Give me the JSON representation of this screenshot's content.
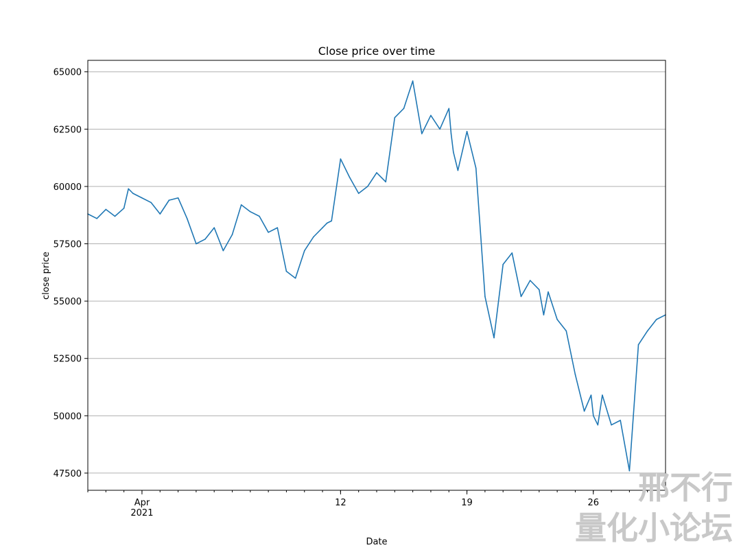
{
  "chart_data": {
    "type": "line",
    "title": "Close price over time",
    "xlabel": "Date",
    "ylabel": "close price",
    "x_range": [
      "2021-03-29",
      "2021-04-30"
    ],
    "ylim": [
      46750,
      65500
    ],
    "yticks": [
      47500,
      50000,
      52500,
      55000,
      57500,
      60000,
      62500,
      65000
    ],
    "xticks": [
      {
        "date": "2021-04-01",
        "label": "Apr",
        "sublabel": "2021"
      },
      {
        "date": "2021-04-12",
        "label": "12",
        "sublabel": ""
      },
      {
        "date": "2021-04-19",
        "label": "19",
        "sublabel": ""
      },
      {
        "date": "2021-04-26",
        "label": "26",
        "sublabel": ""
      }
    ],
    "grid": "y-major",
    "color": "#1f77b4",
    "series": [
      {
        "x": [
          "2021-03-29T00:00",
          "2021-03-29T12:00",
          "2021-03-30T00:00",
          "2021-03-30T12:00",
          "2021-03-31T00:00",
          "2021-03-31T06:00",
          "2021-03-31T12:00",
          "2021-04-01T00:00",
          "2021-04-01T12:00",
          "2021-04-02T00:00",
          "2021-04-02T12:00",
          "2021-04-03T00:00",
          "2021-04-03T12:00",
          "2021-04-04T00:00",
          "2021-04-04T12:00",
          "2021-04-05T00:00",
          "2021-04-05T12:00",
          "2021-04-06T00:00",
          "2021-04-06T12:00",
          "2021-04-07T00:00",
          "2021-04-07T12:00",
          "2021-04-08T00:00",
          "2021-04-08T12:00",
          "2021-04-09T00:00",
          "2021-04-09T12:00",
          "2021-04-10T00:00",
          "2021-04-10T12:00",
          "2021-04-11T00:00",
          "2021-04-11T06:00",
          "2021-04-11T12:00",
          "2021-04-12T00:00",
          "2021-04-12T12:00",
          "2021-04-13T00:00",
          "2021-04-13T12:00",
          "2021-04-14T00:00",
          "2021-04-14T12:00",
          "2021-04-15T00:00",
          "2021-04-15T12:00",
          "2021-04-16T00:00",
          "2021-04-16T12:00",
          "2021-04-17T00:00",
          "2021-04-17T12:00",
          "2021-04-18T00:00",
          "2021-04-18T03:00",
          "2021-04-18T06:00",
          "2021-04-18T12:00",
          "2021-04-19T00:00",
          "2021-04-19T12:00",
          "2021-04-20T00:00",
          "2021-04-20T12:00",
          "2021-04-21T00:00",
          "2021-04-21T12:00",
          "2021-04-22T00:00",
          "2021-04-22T12:00",
          "2021-04-23T00:00",
          "2021-04-23T06:00",
          "2021-04-23T12:00",
          "2021-04-24T00:00",
          "2021-04-24T12:00",
          "2021-04-25T00:00",
          "2021-04-25T12:00",
          "2021-04-25T21:00",
          "2021-04-26T00:00",
          "2021-04-26T06:00",
          "2021-04-26T12:00",
          "2021-04-27T00:00",
          "2021-04-27T12:00",
          "2021-04-28T00:00",
          "2021-04-28T12:00",
          "2021-04-29T00:00",
          "2021-04-29T12:00",
          "2021-04-30T00:00"
        ],
        "values": [
          58800,
          58600,
          59000,
          58700,
          59050,
          59900,
          59700,
          59500,
          59300,
          58800,
          59400,
          59500,
          58600,
          57500,
          57700,
          58200,
          57200,
          57900,
          59200,
          58900,
          58700,
          58000,
          58200,
          56300,
          56000,
          57200,
          57800,
          58200,
          58400,
          58500,
          61200,
          60400,
          59700,
          60000,
          60600,
          60200,
          63000,
          63400,
          64600,
          62300,
          63100,
          62500,
          63400,
          62300,
          61500,
          60700,
          62400,
          60800,
          55200,
          53400,
          56600,
          57100,
          55200,
          55900,
          55500,
          54400,
          55400,
          54200,
          53700,
          51800,
          50200,
          50900,
          50000,
          49600,
          50900,
          49600,
          49800,
          47600,
          53100,
          53700,
          54200,
          54400
        ]
      }
    ]
  },
  "watermark": {
    "line1": "邢不行",
    "line2": "量化小论坛"
  }
}
